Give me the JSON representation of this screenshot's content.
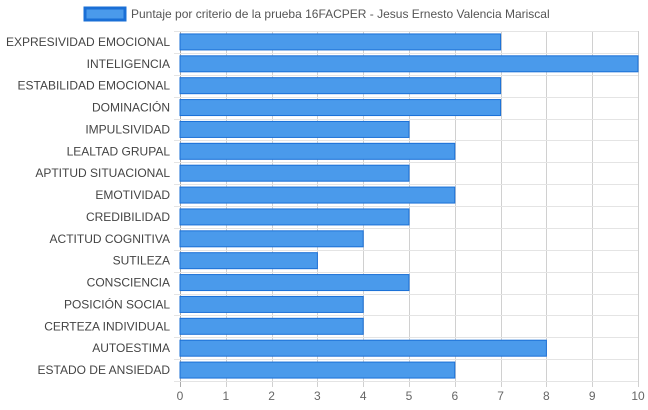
{
  "chart_data": {
    "type": "bar",
    "orientation": "horizontal",
    "title": "",
    "xlabel": "",
    "ylabel": "",
    "xlim": [
      0,
      10
    ],
    "xticks": [
      0,
      1,
      2,
      3,
      4,
      5,
      6,
      7,
      8,
      9,
      10
    ],
    "grid": true,
    "legend_position": "top",
    "categories": [
      "EXPRESIVIDAD EMOCIONAL",
      "INTELIGENCIA",
      "ESTABILIDAD EMOCIONAL",
      "DOMINACIÓN",
      "IMPULSIVIDAD",
      "LEALTAD GRUPAL",
      "APTITUD SITUACIONAL",
      "EMOTIVIDAD",
      "CREDIBILIDAD",
      "ACTITUD COGNITIVA",
      "SUTILEZA",
      "CONSCIENCIA",
      "POSICIÓN SOCIAL",
      "CERTEZA INDIVIDUAL",
      "AUTOESTIMA",
      "ESTADO DE ANSIEDAD"
    ],
    "series": [
      {
        "name": "Puntaje por criterio de la prueba 16FACPER - Jesus Ernesto Valencia Mariscal",
        "color": "#4a9aeb",
        "border_color": "#1a6fd6",
        "values": [
          7,
          10,
          7,
          7,
          5,
          6,
          5,
          6,
          5,
          4,
          3,
          5,
          4,
          4,
          8,
          6
        ]
      }
    ]
  }
}
